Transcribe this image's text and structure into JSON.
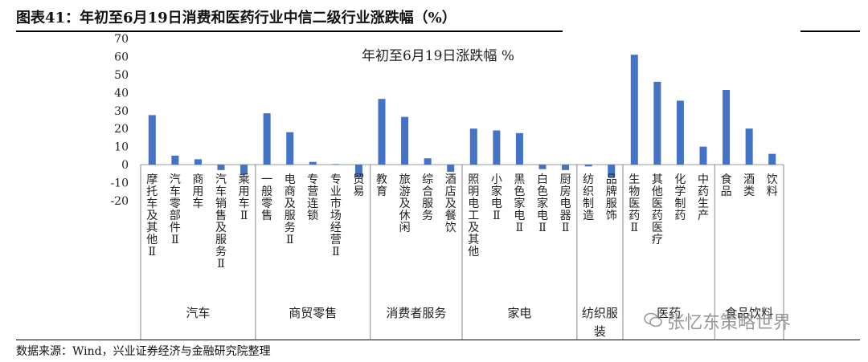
{
  "figure": {
    "title": "图表41：年初至6月19日消费和医药行业中信二级行业涨跌幅（%）",
    "source": "数据来源：Wind，兴业证券经济与金融研究院整理",
    "watermark": "张忆东策略世界"
  },
  "chart_data": {
    "type": "bar",
    "title": "年初至6月19日涨跌幅 %",
    "ylim": [
      -20,
      70
    ],
    "yticks": [
      -20,
      -10,
      0,
      10,
      20,
      30,
      40,
      50,
      60,
      70
    ],
    "grid": false,
    "bar_color": "#4472C4",
    "categories": [
      "摩托车及其他Ⅱ",
      "汽车零部件Ⅱ",
      "商用车",
      "汽车销售及服务Ⅱ",
      "乘用车Ⅱ",
      "一般零售",
      "电商及服务Ⅱ",
      "专营连锁",
      "专业市场经营Ⅱ",
      "贸易",
      "教育",
      "旅游及休闲",
      "综合服务",
      "酒店及餐饮",
      "照明电工及其他",
      "小家电Ⅱ",
      "黑色家电Ⅱ",
      "白色家电Ⅱ",
      "厨房电器Ⅱ",
      "纺织制造",
      "品牌服饰",
      "生物医药Ⅱ",
      "其他医药医疗",
      "化学制药",
      "中药生产",
      "食品",
      "酒类",
      "饮料"
    ],
    "values": [
      27.5,
      5,
      3,
      -3,
      -5.5,
      28.5,
      18,
      1.5,
      0.3,
      -7,
      36.5,
      26.5,
      3.5,
      -4,
      20,
      19,
      17.5,
      -2.5,
      -3,
      -1,
      -7,
      61,
      46,
      35.5,
      10,
      41.5,
      20,
      6
    ],
    "groups": [
      {
        "name": "汽车",
        "count": 5
      },
      {
        "name": "商贸零售",
        "count": 5
      },
      {
        "name": "消费者服务",
        "count": 4
      },
      {
        "name": "家电",
        "count": 5
      },
      {
        "name": "纺织服装",
        "count": 2
      },
      {
        "name": "医药",
        "count": 4
      },
      {
        "name": "食品饮料",
        "count": 3
      }
    ]
  }
}
